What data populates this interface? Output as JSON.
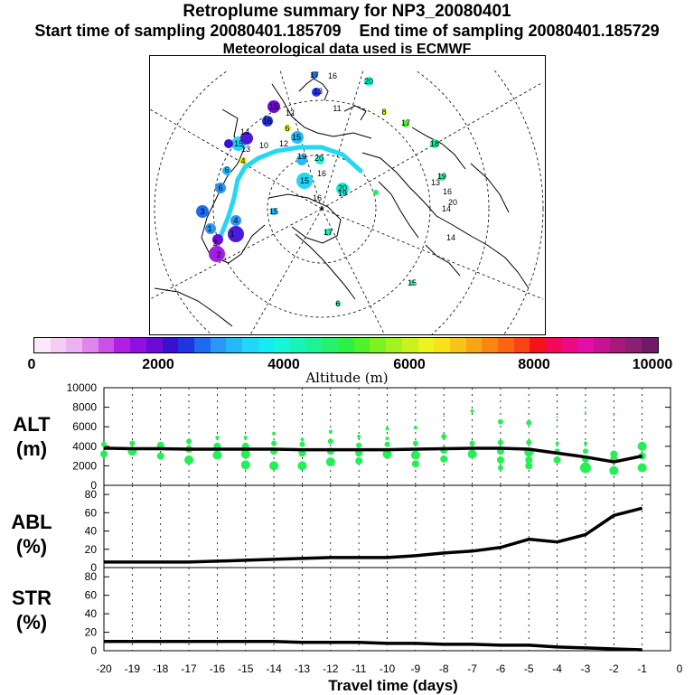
{
  "header": {
    "title": "Retroplume summary for NP3_20080401",
    "start": "Start time of sampling 20080401.185709",
    "end": "End time of sampling 20080401.185729",
    "met": "Meteorological data used is ECMWF"
  },
  "colorbar": {
    "title": "Altitude (m)",
    "ticks": [
      "0",
      "2000",
      "4000",
      "6000",
      "8000",
      "10000"
    ],
    "colors": [
      "#fbe9fb",
      "#f3cdf3",
      "#eab2f0",
      "#de86ec",
      "#cc4fe6",
      "#b21fe0",
      "#9010e0",
      "#6c0ad6",
      "#3a0fd0",
      "#2034e0",
      "#1f6bef",
      "#2a97f6",
      "#26b9f7",
      "#21d6f7",
      "#15ecef",
      "#14f6d7",
      "#16f4b8",
      "#1ef293",
      "#27f06e",
      "#2cf046",
      "#50f229",
      "#7cf220",
      "#a4f220",
      "#cbf220",
      "#ecf41e",
      "#f7e11a",
      "#f8c419",
      "#f8a417",
      "#f88615",
      "#f86613",
      "#f84412",
      "#f3141b",
      "#f20a59",
      "#ee0886",
      "#e10ea7",
      "#c61293",
      "#a61a7c",
      "#8b1f71",
      "#6f1b65"
    ]
  },
  "map": {
    "labels": [
      {
        "t": "17",
        "x": 347,
        "y": 82
      },
      {
        "t": "16",
        "x": 367,
        "y": 83
      },
      {
        "t": "20",
        "x": 407,
        "y": 89
      },
      {
        "t": "13",
        "x": 351,
        "y": 100
      },
      {
        "t": "15",
        "x": 302,
        "y": 117
      },
      {
        "t": "12",
        "x": 320,
        "y": 124
      },
      {
        "t": "11",
        "x": 372,
        "y": 119
      },
      {
        "t": "8",
        "x": 424,
        "y": 123
      },
      {
        "t": "17",
        "x": 448,
        "y": 135
      },
      {
        "t": "16",
        "x": 295,
        "y": 133
      },
      {
        "t": "14",
        "x": 270,
        "y": 145
      },
      {
        "t": "6",
        "x": 317,
        "y": 141
      },
      {
        "t": "15",
        "x": 327,
        "y": 151
      },
      {
        "t": "15",
        "x": 263,
        "y": 158
      },
      {
        "t": "10",
        "x": 291,
        "y": 160
      },
      {
        "t": "12",
        "x": 313,
        "y": 158
      },
      {
        "t": "13",
        "x": 271,
        "y": 164
      },
      {
        "t": "18",
        "x": 480,
        "y": 158
      },
      {
        "t": "4",
        "x": 268,
        "y": 177
      },
      {
        "t": "6",
        "x": 250,
        "y": 187
      },
      {
        "t": "19",
        "x": 333,
        "y": 172
      },
      {
        "t": "20",
        "x": 352,
        "y": 174
      },
      {
        "t": "16",
        "x": 355,
        "y": 191
      },
      {
        "t": "19",
        "x": 488,
        "y": 194
      },
      {
        "t": "13",
        "x": 481,
        "y": 201
      },
      {
        "t": "15",
        "x": 336,
        "y": 199
      },
      {
        "t": "20",
        "x": 378,
        "y": 207
      },
      {
        "t": "19",
        "x": 378,
        "y": 213
      },
      {
        "t": "16",
        "x": 494,
        "y": 211
      },
      {
        "t": "20",
        "x": 500,
        "y": 223
      },
      {
        "t": "16",
        "x": 350,
        "y": 218
      },
      {
        "t": "6",
        "x": 243,
        "y": 207
      },
      {
        "t": "3",
        "x": 223,
        "y": 233
      },
      {
        "t": "4",
        "x": 260,
        "y": 243
      },
      {
        "t": "1",
        "x": 231,
        "y": 252
      },
      {
        "t": "1",
        "x": 256,
        "y": 258
      },
      {
        "t": "2",
        "x": 237,
        "y": 268
      },
      {
        "t": "2",
        "x": 241,
        "y": 281
      },
      {
        "t": "17",
        "x": 362,
        "y": 256
      },
      {
        "t": "14",
        "x": 493,
        "y": 230
      },
      {
        "t": "15",
        "x": 302,
        "y": 233
      },
      {
        "t": "14",
        "x": 498,
        "y": 262
      },
      {
        "t": "15",
        "x": 455,
        "y": 312
      },
      {
        "t": "6",
        "x": 373,
        "y": 335
      }
    ]
  },
  "panels": [
    {
      "label": "ALT\n(m)"
    },
    {
      "label": "ABL\n(%)"
    },
    {
      "label": "STR\n(%)"
    }
  ],
  "chart_data": [
    {
      "type": "line",
      "name": "ALT",
      "ylabel": "ALT (m)",
      "x": [
        -20,
        -19,
        -18,
        -17,
        -16,
        -15,
        -14,
        -13,
        -12,
        -11,
        -10,
        -9,
        -8,
        -7,
        -6,
        -5,
        -4,
        -3,
        -2,
        -1
      ],
      "values": [
        3800,
        3750,
        3750,
        3700,
        3700,
        3700,
        3700,
        3650,
        3650,
        3650,
        3650,
        3700,
        3750,
        3800,
        3800,
        3700,
        3300,
        2900,
        2400,
        3000
      ],
      "ylim": [
        0,
        10000
      ],
      "yticks": [
        "0",
        "2000",
        "4000",
        "6000",
        "8000",
        "10000"
      ],
      "scatter_color": "#22f055",
      "scatter": [
        {
          "x": -20,
          "y": 3200,
          "s": 4
        },
        {
          "x": -20,
          "y": 4200,
          "s": 3
        },
        {
          "x": -19,
          "y": 3500,
          "s": 5
        },
        {
          "x": -19,
          "y": 4300,
          "s": 3
        },
        {
          "x": -18,
          "y": 3000,
          "s": 4
        },
        {
          "x": -18,
          "y": 4100,
          "s": 4
        },
        {
          "x": -17,
          "y": 2600,
          "s": 5
        },
        {
          "x": -17,
          "y": 3700,
          "s": 4
        },
        {
          "x": -17,
          "y": 4500,
          "s": 3
        },
        {
          "x": -16,
          "y": 3100,
          "s": 5
        },
        {
          "x": -16,
          "y": 4000,
          "s": 4
        },
        {
          "x": -16,
          "y": 4900,
          "s": 2
        },
        {
          "x": -15,
          "y": 2100,
          "s": 5
        },
        {
          "x": -15,
          "y": 3200,
          "s": 5
        },
        {
          "x": -15,
          "y": 4000,
          "s": 4
        },
        {
          "x": -15,
          "y": 4900,
          "s": 2
        },
        {
          "x": -14,
          "y": 2000,
          "s": 5
        },
        {
          "x": -14,
          "y": 3500,
          "s": 4
        },
        {
          "x": -14,
          "y": 4300,
          "s": 3
        },
        {
          "x": -14,
          "y": 5300,
          "s": 2
        },
        {
          "x": -13,
          "y": 2000,
          "s": 5
        },
        {
          "x": -13,
          "y": 3300,
          "s": 4
        },
        {
          "x": -13,
          "y": 4200,
          "s": 3
        },
        {
          "x": -13,
          "y": 4700,
          "s": 2
        },
        {
          "x": -12,
          "y": 2400,
          "s": 5
        },
        {
          "x": -12,
          "y": 3500,
          "s": 4
        },
        {
          "x": -12,
          "y": 4500,
          "s": 3
        },
        {
          "x": -12,
          "y": 5500,
          "s": 2
        },
        {
          "x": -11,
          "y": 2500,
          "s": 4
        },
        {
          "x": -11,
          "y": 3300,
          "s": 4
        },
        {
          "x": -11,
          "y": 4100,
          "s": 3
        },
        {
          "x": -11,
          "y": 5000,
          "s": 2
        },
        {
          "x": -10,
          "y": 3200,
          "s": 5
        },
        {
          "x": -10,
          "y": 4200,
          "s": 3
        },
        {
          "x": -10,
          "y": 4800,
          "s": 2
        },
        {
          "x": -10,
          "y": 5800,
          "s": 2
        },
        {
          "x": -9,
          "y": 2200,
          "s": 4
        },
        {
          "x": -9,
          "y": 3100,
          "s": 5
        },
        {
          "x": -9,
          "y": 4300,
          "s": 3
        },
        {
          "x": -9,
          "y": 5900,
          "s": 2
        },
        {
          "x": -8,
          "y": 2700,
          "s": 4
        },
        {
          "x": -8,
          "y": 3600,
          "s": 4
        },
        {
          "x": -8,
          "y": 5000,
          "s": 3
        },
        {
          "x": -8,
          "y": 7100,
          "s": 1
        },
        {
          "x": -7,
          "y": 3200,
          "s": 5
        },
        {
          "x": -7,
          "y": 4300,
          "s": 3
        },
        {
          "x": -7,
          "y": 7600,
          "s": 2
        },
        {
          "x": -6,
          "y": 1800,
          "s": 3
        },
        {
          "x": -6,
          "y": 2600,
          "s": 4
        },
        {
          "x": -6,
          "y": 3500,
          "s": 4
        },
        {
          "x": -6,
          "y": 4400,
          "s": 3
        },
        {
          "x": -6,
          "y": 6500,
          "s": 3
        },
        {
          "x": -5,
          "y": 2000,
          "s": 4
        },
        {
          "x": -5,
          "y": 2600,
          "s": 4
        },
        {
          "x": -5,
          "y": 3400,
          "s": 5
        },
        {
          "x": -5,
          "y": 4400,
          "s": 3
        },
        {
          "x": -5,
          "y": 6400,
          "s": 3
        },
        {
          "x": -4,
          "y": 2600,
          "s": 4
        },
        {
          "x": -4,
          "y": 3500,
          "s": 3
        },
        {
          "x": -4,
          "y": 4300,
          "s": 2
        },
        {
          "x": -4,
          "y": 7000,
          "s": 1
        },
        {
          "x": -3,
          "y": 1800,
          "s": 6
        },
        {
          "x": -3,
          "y": 2700,
          "s": 4
        },
        {
          "x": -3,
          "y": 3500,
          "s": 3
        },
        {
          "x": -3,
          "y": 4300,
          "s": 2
        },
        {
          "x": -3,
          "y": 7500,
          "s": 1
        },
        {
          "x": -2,
          "y": 1500,
          "s": 5
        },
        {
          "x": -2,
          "y": 2700,
          "s": 4
        },
        {
          "x": -2,
          "y": 3200,
          "s": 4
        },
        {
          "x": -2,
          "y": 7200,
          "s": 1
        },
        {
          "x": -1,
          "y": 1800,
          "s": 5
        },
        {
          "x": -1,
          "y": 3000,
          "s": 4
        },
        {
          "x": -1,
          "y": 4000,
          "s": 5
        }
      ]
    },
    {
      "type": "line",
      "name": "ABL",
      "ylabel": "ABL (%)",
      "x": [
        -20,
        -19,
        -18,
        -17,
        -16,
        -15,
        -14,
        -13,
        -12,
        -11,
        -10,
        -9,
        -8,
        -7,
        -6,
        -5,
        -4,
        -3,
        -2,
        -1
      ],
      "values": [
        6,
        6,
        6,
        6,
        7,
        8,
        9,
        10,
        11,
        11,
        11,
        13,
        16,
        18,
        22,
        31,
        28,
        36,
        57,
        65
      ],
      "ylim": [
        0,
        90
      ],
      "yticks": [
        "0",
        "20",
        "40",
        "60",
        "80"
      ]
    },
    {
      "type": "line",
      "name": "STR",
      "ylabel": "STR (%)",
      "x": [
        -20,
        -19,
        -18,
        -17,
        -16,
        -15,
        -14,
        -13,
        -12,
        -11,
        -10,
        -9,
        -8,
        -7,
        -6,
        -5,
        -4,
        -3,
        -2,
        -1
      ],
      "values": [
        10,
        10,
        10,
        10,
        10,
        10,
        10,
        9,
        9,
        9,
        8,
        8,
        7,
        7,
        6,
        6,
        4,
        3,
        2,
        1
      ],
      "ylim": [
        0,
        90
      ],
      "yticks": [
        "0",
        "20",
        "40",
        "60",
        "80"
      ]
    }
  ],
  "xaxis": {
    "title": "Travel time (days)",
    "ticks": [
      "-20",
      "-19",
      "-18",
      "-17",
      "-16",
      "-15",
      "-14",
      "-13",
      "-12",
      "-11",
      "-10",
      "-9",
      "-8",
      "-7",
      "-6",
      "-5",
      "-4",
      "-3",
      "-2",
      "-1",
      "0"
    ]
  }
}
